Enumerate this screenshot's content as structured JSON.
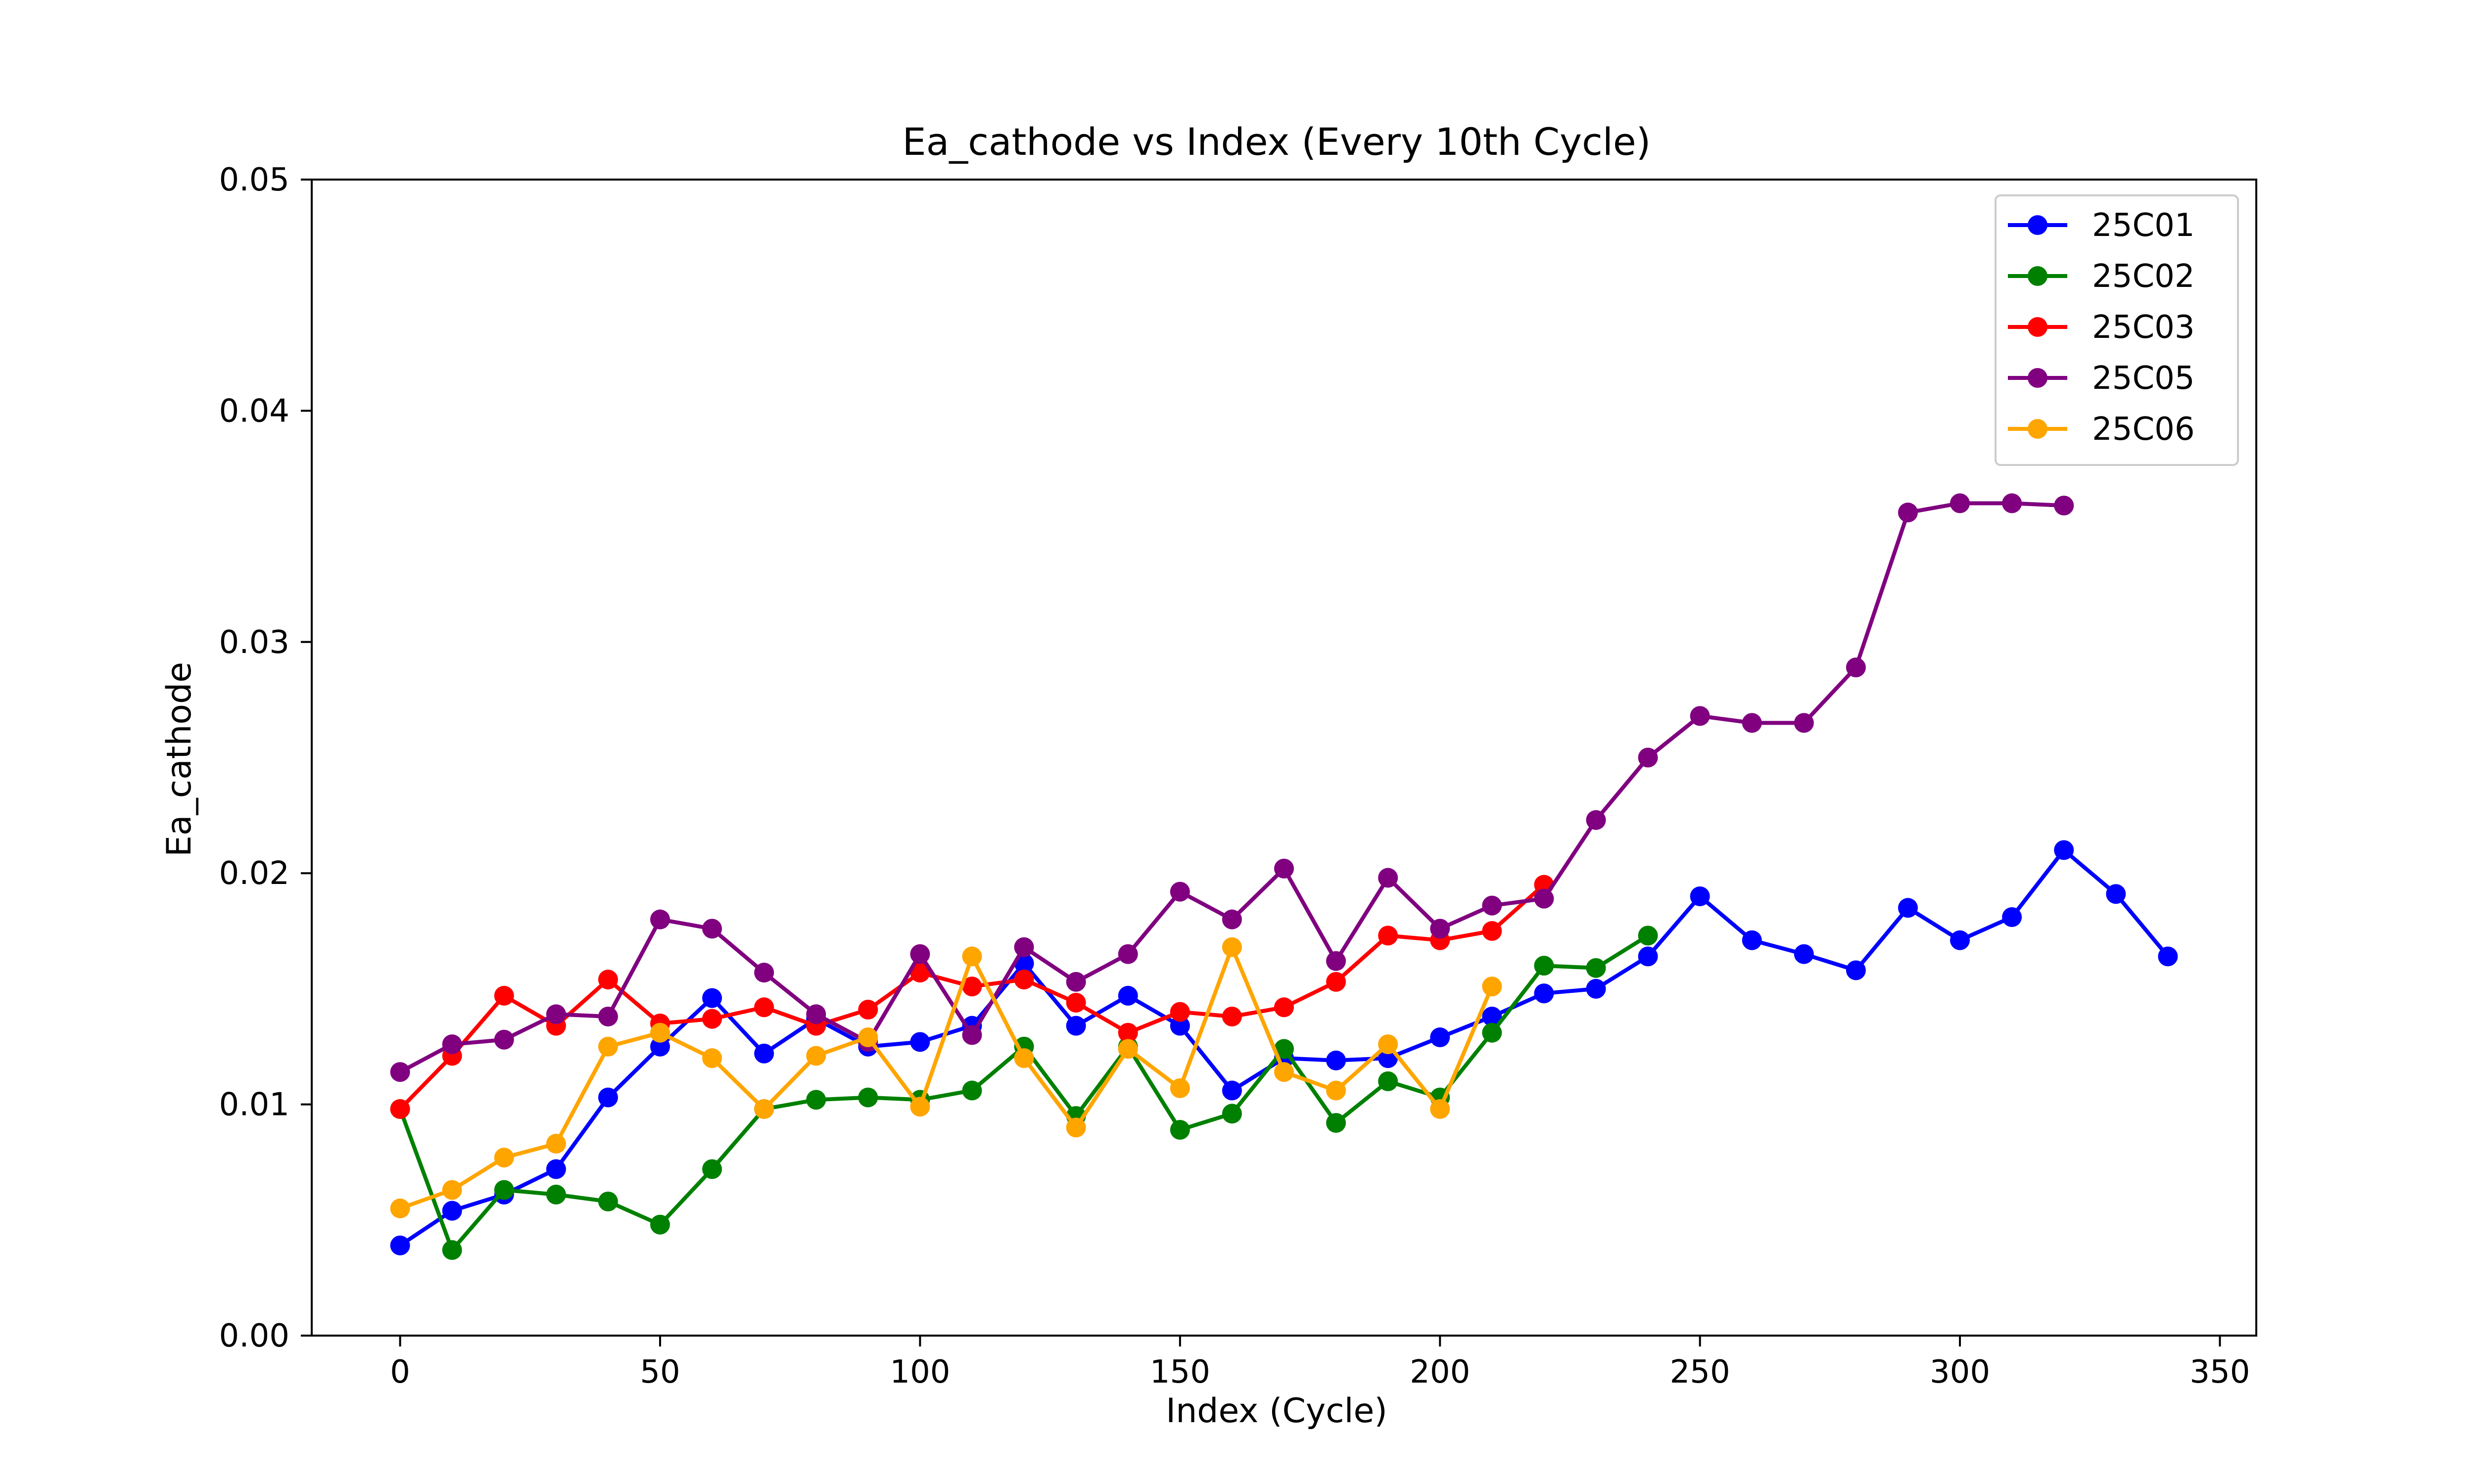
{
  "chart_data": {
    "type": "line",
    "title": "Ea_cathode vs Index (Every 10th Cycle)",
    "xlabel": "Index (Cycle)",
    "ylabel": "Ea_cathode",
    "xlim": [
      -17,
      357
    ],
    "ylim": [
      0,
      0.05
    ],
    "xticks": [
      0,
      50,
      100,
      150,
      200,
      250,
      300,
      350
    ],
    "xtick_labels": [
      "0",
      "50",
      "100",
      "150",
      "200",
      "250",
      "300",
      "350"
    ],
    "yticks": [
      0,
      0.01,
      0.02,
      0.03,
      0.04,
      0.05
    ],
    "ytick_labels": [
      "0.00",
      "0.01",
      "0.02",
      "0.03",
      "0.04",
      "0.05"
    ],
    "grid": false,
    "legend_position": "top-right",
    "series": [
      {
        "name": "25C01",
        "color": "#0000ff",
        "marker": "circle",
        "x": [
          0,
          10,
          20,
          30,
          40,
          50,
          60,
          70,
          80,
          90,
          100,
          110,
          120,
          130,
          140,
          150,
          160,
          170,
          180,
          190,
          200,
          210,
          220,
          230,
          240,
          250,
          260,
          270,
          280,
          290,
          300,
          310,
          320,
          330,
          340
        ],
        "y": [
          0.0039,
          0.0054,
          0.0061,
          0.0072,
          0.0103,
          0.0125,
          0.0146,
          0.0122,
          0.0137,
          0.0125,
          0.0127,
          0.0134,
          0.0161,
          0.0134,
          0.0147,
          0.0134,
          0.0106,
          0.012,
          0.0119,
          0.012,
          0.0129,
          0.0138,
          0.0148,
          0.015,
          0.0164,
          0.019,
          0.0171,
          0.0165,
          0.0158,
          0.0185,
          0.0171,
          0.0181,
          0.021,
          0.0191,
          0.0164
        ]
      },
      {
        "name": "25C02",
        "color": "#008000",
        "marker": "circle",
        "x": [
          0,
          10,
          20,
          30,
          40,
          50,
          60,
          70,
          80,
          90,
          100,
          110,
          120,
          130,
          140,
          150,
          160,
          170,
          180,
          190,
          200,
          210,
          220,
          230,
          240
        ],
        "y": [
          0.0098,
          0.0037,
          0.0063,
          0.0061,
          0.0058,
          0.0048,
          0.0072,
          0.0098,
          0.0102,
          0.0103,
          0.0102,
          0.0106,
          0.0125,
          0.0095,
          0.0125,
          0.0089,
          0.0096,
          0.0124,
          0.0092,
          0.011,
          0.0103,
          0.0131,
          0.016,
          0.0159,
          0.0173
        ]
      },
      {
        "name": "25C03",
        "color": "#ff0000",
        "marker": "circle",
        "x": [
          0,
          10,
          20,
          30,
          40,
          50,
          60,
          70,
          80,
          90,
          100,
          110,
          120,
          130,
          140,
          150,
          160,
          170,
          180,
          190,
          200,
          210,
          220
        ],
        "y": [
          0.0098,
          0.0121,
          0.0147,
          0.0134,
          0.0154,
          0.0135,
          0.0137,
          0.0142,
          0.0134,
          0.0141,
          0.0157,
          0.0151,
          0.0154,
          0.0144,
          0.0131,
          0.014,
          0.0138,
          0.0142,
          0.0153,
          0.0173,
          0.0171,
          0.0175,
          0.0195
        ]
      },
      {
        "name": "25C05",
        "color": "#800080",
        "marker": "circle",
        "x": [
          0,
          10,
          20,
          30,
          40,
          50,
          60,
          70,
          80,
          90,
          100,
          110,
          120,
          130,
          140,
          150,
          160,
          170,
          180,
          190,
          200,
          210,
          220,
          230,
          240,
          250,
          260,
          270,
          280,
          290,
          300,
          310,
          320
        ],
        "y": [
          0.0114,
          0.0126,
          0.0128,
          0.0139,
          0.0138,
          0.018,
          0.0176,
          0.0157,
          0.0139,
          0.0127,
          0.0165,
          0.013,
          0.0168,
          0.0153,
          0.0165,
          0.0192,
          0.018,
          0.0202,
          0.0162,
          0.0198,
          0.0176,
          0.0186,
          0.0189,
          0.0223,
          0.025,
          0.0268,
          0.0265,
          0.0265,
          0.0289,
          0.0356,
          0.036,
          0.036,
          0.0359
        ]
      },
      {
        "name": "25C06",
        "color": "#ffa500",
        "marker": "circle",
        "x": [
          0,
          10,
          20,
          30,
          40,
          50,
          60,
          70,
          80,
          90,
          100,
          110,
          120,
          130,
          140,
          150,
          160,
          170,
          180,
          190,
          200,
          210
        ],
        "y": [
          0.0055,
          0.0063,
          0.0077,
          0.0083,
          0.0125,
          0.0131,
          0.012,
          0.0098,
          0.0121,
          0.0129,
          0.0099,
          0.0164,
          0.012,
          0.009,
          0.0124,
          0.0107,
          0.0168,
          0.0114,
          0.0106,
          0.0126,
          0.0098,
          0.0151
        ]
      }
    ]
  }
}
